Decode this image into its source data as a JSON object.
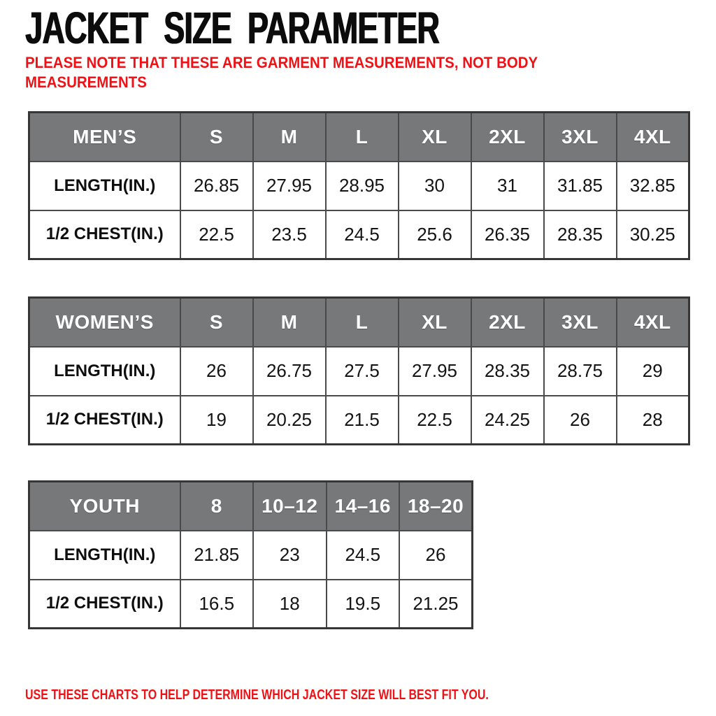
{
  "page": {
    "title": "JACKET SIZE PARAMETER",
    "note_line1": "PLEASE NOTE THAT THESE ARE GARMENT MEASUREMENTS, NOT BODY",
    "note_line2": "MEASUREMENTS",
    "footer": "USE THESE CHARTS TO HELP DETERMINE WHICH JACKET SIZE WILL BEST FIT YOU.",
    "colors": {
      "accent_red": "#ee1216",
      "header_gray": "#77787a",
      "border_inner": "#4a4a4b",
      "border_outer": "#363636"
    }
  },
  "chart_data": [
    {
      "type": "table",
      "title": "MEN’S",
      "columns": [
        "S",
        "M",
        "L",
        "XL",
        "2XL",
        "3XL",
        "4XL"
      ],
      "rows": [
        {
          "label": "LENGTH(IN.)",
          "values": [
            "26.85",
            "27.95",
            "28.95",
            "30",
            "31",
            "31.85",
            "32.85"
          ]
        },
        {
          "label": "1/2 CHEST(IN.)",
          "values": [
            "22.5",
            "23.5",
            "24.5",
            "25.6",
            "26.35",
            "28.35",
            "30.25"
          ]
        }
      ]
    },
    {
      "type": "table",
      "title": "WOMEN’S",
      "columns": [
        "S",
        "M",
        "L",
        "XL",
        "2XL",
        "3XL",
        "4XL"
      ],
      "rows": [
        {
          "label": "LENGTH(IN.)",
          "values": [
            "26",
            "26.75",
            "27.5",
            "27.95",
            "28.35",
            "28.75",
            "29"
          ]
        },
        {
          "label": "1/2 CHEST(IN.)",
          "values": [
            "19",
            "20.25",
            "21.5",
            "22.5",
            "24.25",
            "26",
            "28"
          ]
        }
      ]
    },
    {
      "type": "table",
      "title": "YOUTH",
      "columns": [
        "8",
        "10–12",
        "14–16",
        "18–20"
      ],
      "rows": [
        {
          "label": "LENGTH(IN.)",
          "values": [
            "21.85",
            "23",
            "24.5",
            "26"
          ]
        },
        {
          "label": "1/2 CHEST(IN.)",
          "values": [
            "16.5",
            "18",
            "19.5",
            "21.25"
          ]
        }
      ]
    }
  ]
}
